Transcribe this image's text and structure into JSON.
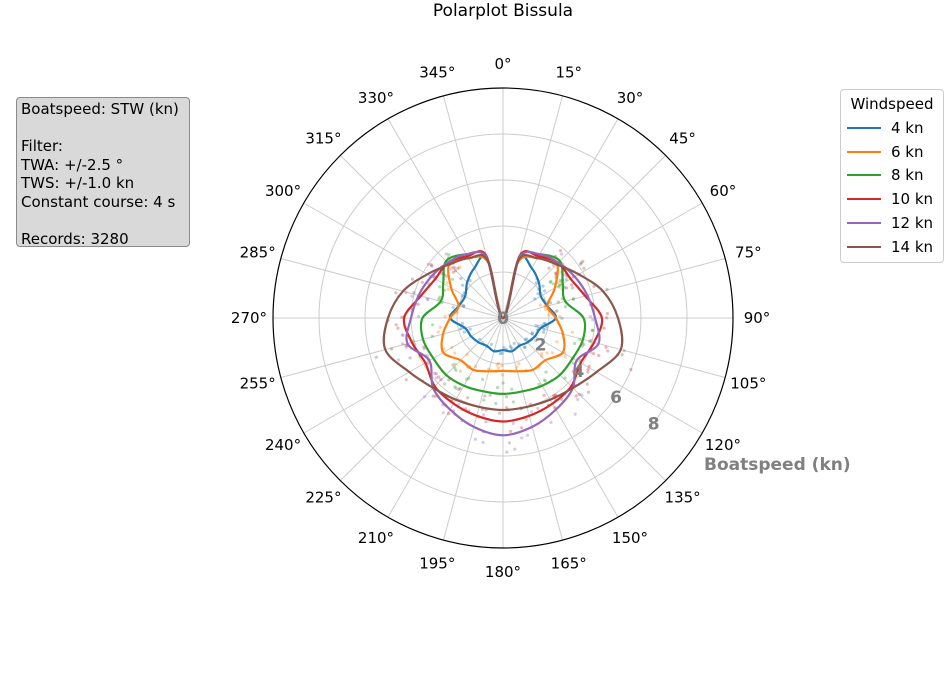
{
  "info": {
    "lines": [
      "Boatspeed: STW (kn)",
      "",
      "Filter:",
      "TWA: +/-2.5 °",
      "TWS: +/-1.0 kn",
      "Constant course: 4 s",
      "",
      "Records: 3280"
    ]
  },
  "legend": {
    "title": "Windspeed"
  },
  "chart_data": {
    "type": "polar-line",
    "title": "Polarplot Bissula",
    "radial_label": "Boatspeed (kn)",
    "radial_ticks": [
      0,
      2,
      4,
      6,
      8
    ],
    "rlim": [
      0,
      10
    ],
    "theta_ticks": [
      "0°",
      "15°",
      "30°",
      "45°",
      "60°",
      "75°",
      "90°",
      "105°",
      "120°",
      "135°",
      "150°",
      "165°",
      "180°",
      "195°",
      "210°",
      "225°",
      "240°",
      "255°",
      "270°",
      "285°",
      "300°",
      "315°",
      "330°",
      "345°"
    ],
    "theta_zero": "top",
    "theta_direction": "clockwise",
    "grid": true,
    "legend_placement": "upper right outside",
    "angles": [
      0,
      15,
      30,
      45,
      60,
      75,
      90,
      105,
      120,
      135,
      150,
      165,
      180
    ],
    "series": [
      {
        "name": "4 kn",
        "color": "#1f77b4",
        "values": [
          0,
          2.7,
          2.5,
          2.2,
          1.9,
          2.0,
          2.3,
          1.7,
          1.6,
          1.5,
          1.4,
          1.5,
          1.4
        ]
      },
      {
        "name": "6 kn",
        "color": "#ff7f0e",
        "values": [
          0,
          2.5,
          3.0,
          3.3,
          2.6,
          2.0,
          2.3,
          2.7,
          3.0,
          2.6,
          2.6,
          2.4,
          2.3
        ]
      },
      {
        "name": "8 kn",
        "color": "#2ca02c",
        "values": [
          0,
          2.7,
          3.2,
          3.5,
          3.0,
          2.8,
          3.5,
          3.6,
          3.5,
          3.5,
          3.4,
          3.3,
          3.3
        ]
      },
      {
        "name": "10 kn",
        "color": "#d62728",
        "values": [
          0,
          2.8,
          3.1,
          3.4,
          3.4,
          3.7,
          4.3,
          4.1,
          3.9,
          4.2,
          4.3,
          4.4,
          4.5
        ]
      },
      {
        "name": "12 kn",
        "color": "#9467bd",
        "values": [
          0,
          2.7,
          3.2,
          3.4,
          3.6,
          3.8,
          4.0,
          4.3,
          3.7,
          4.3,
          4.6,
          4.9,
          5.1
        ]
      },
      {
        "name": "14 kn",
        "color": "#8c564b",
        "values": [
          0,
          2.6,
          3.0,
          3.3,
          3.8,
          4.5,
          5.0,
          5.3,
          4.7,
          4.3,
          4.1,
          4.0,
          4.0
        ]
      }
    ]
  }
}
